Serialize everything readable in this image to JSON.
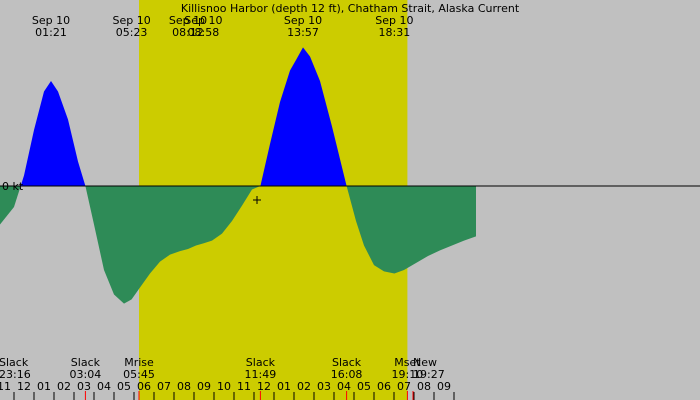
{
  "chart_data": {
    "type": "area",
    "title": "Killisnoo Harbor (depth 12 ft), Chatham Strait, Alaska Current",
    "xlabel": "",
    "ylabel": "",
    "zero_label": "0 kt",
    "colors": {
      "night": "#c0c0c0",
      "day": "#cccc00",
      "flood": "#0000ff",
      "ebb": "#2e8b57"
    },
    "daylight_hours": [
      5.75,
      19.17
    ],
    "x_range_hours": [
      -1.2,
      33.8
    ],
    "series": [
      {
        "x": [
          -1.2,
          -0.5,
          0.0,
          0.5,
          1.0,
          1.35,
          1.7,
          2.2,
          2.7,
          3.07,
          3.5,
          4.0,
          4.5,
          5.0,
          5.38,
          5.8,
          6.3,
          6.8,
          7.3,
          7.8,
          8.2,
          8.6,
          8.97,
          9.4,
          9.9,
          10.4,
          10.9,
          11.4,
          11.82,
          12.3,
          12.8,
          13.3,
          13.6,
          13.95,
          14.3,
          14.8,
          15.4,
          16.13,
          16.6,
          17.0,
          17.5,
          18.0,
          18.52,
          19.0,
          19.6,
          20.2,
          20.8,
          21.4,
          22.0,
          22.6
        ],
        "y": [
          -0.55,
          -0.3,
          0.15,
          0.8,
          1.35,
          1.5,
          1.35,
          0.95,
          0.35,
          0.0,
          -0.55,
          -1.2,
          -1.55,
          -1.68,
          -1.62,
          -1.45,
          -1.25,
          -1.08,
          -0.98,
          -0.93,
          -0.9,
          -0.85,
          -0.82,
          -0.78,
          -0.68,
          -0.5,
          -0.28,
          -0.05,
          0.0,
          0.6,
          1.2,
          1.65,
          1.8,
          1.98,
          1.85,
          1.5,
          0.85,
          0.0,
          -0.5,
          -0.85,
          -1.13,
          -1.22,
          -1.25,
          -1.2,
          -1.1,
          -1.0,
          -0.92,
          -0.85,
          -0.78,
          -0.72
        ]
      }
    ],
    "top_events": [
      {
        "date": "Sep 10",
        "time": "01:21",
        "hour": 1.35
      },
      {
        "date": "Sep 10",
        "time": "05:23",
        "hour": 5.38
      },
      {
        "date": "Sep 10",
        "time": "08:12",
        "hour": 8.2
      },
      {
        "date": "Sep 10",
        "time": "08:58",
        "hour": 8.97
      },
      {
        "date": "Sep 10",
        "time": "13:57",
        "hour": 13.95
      },
      {
        "date": "Sep 10",
        "time": "18:31",
        "hour": 18.52
      }
    ],
    "bottom_events": [
      {
        "label": "Slack",
        "time": "23:16",
        "hour": -0.73,
        "anchor": "start"
      },
      {
        "label": "Slack",
        "time": "03:04",
        "hour": 3.07,
        "anchor": "middle"
      },
      {
        "label": "Mrise",
        "time": "05:45",
        "hour": 5.75,
        "anchor": "middle"
      },
      {
        "label": "Slack",
        "time": "11:49",
        "hour": 11.82,
        "anchor": "middle"
      },
      {
        "label": "Slack",
        "time": "16:08",
        "hour": 16.13,
        "anchor": "middle"
      },
      {
        "label": "Mset",
        "time": "19:10",
        "hour": 19.17,
        "anchor": "middle"
      },
      {
        "label": "New",
        "time": "19:27",
        "hour": 19.45,
        "anchor": "start"
      }
    ],
    "hour_ticks": [
      {
        "label": "11",
        "hour": -1
      },
      {
        "label": "12",
        "hour": 0
      },
      {
        "label": "01",
        "hour": 1
      },
      {
        "label": "02",
        "hour": 2
      },
      {
        "label": "03",
        "hour": 3
      },
      {
        "label": "04",
        "hour": 4
      },
      {
        "label": "05",
        "hour": 5
      },
      {
        "label": "06",
        "hour": 6
      },
      {
        "label": "07",
        "hour": 7
      },
      {
        "label": "08",
        "hour": 8
      },
      {
        "label": "09",
        "hour": 9
      },
      {
        "label": "10",
        "hour": 10
      },
      {
        "label": "11",
        "hour": 11
      },
      {
        "label": "12",
        "hour": 12
      },
      {
        "label": "01",
        "hour": 13
      },
      {
        "label": "02",
        "hour": 14
      },
      {
        "label": "03",
        "hour": 15
      },
      {
        "label": "04",
        "hour": 16
      },
      {
        "label": "05",
        "hour": 17
      },
      {
        "label": "06",
        "hour": 18
      },
      {
        "label": "07",
        "hour": 19
      },
      {
        "label": "08",
        "hour": 20
      },
      {
        "label": "09",
        "hour": 21
      }
    ],
    "event_markers": [
      3.07,
      5.75,
      11.82,
      16.13,
      19.17,
      19.45
    ],
    "current_marker": {
      "hour": 11.65,
      "value": -0.2
    }
  }
}
